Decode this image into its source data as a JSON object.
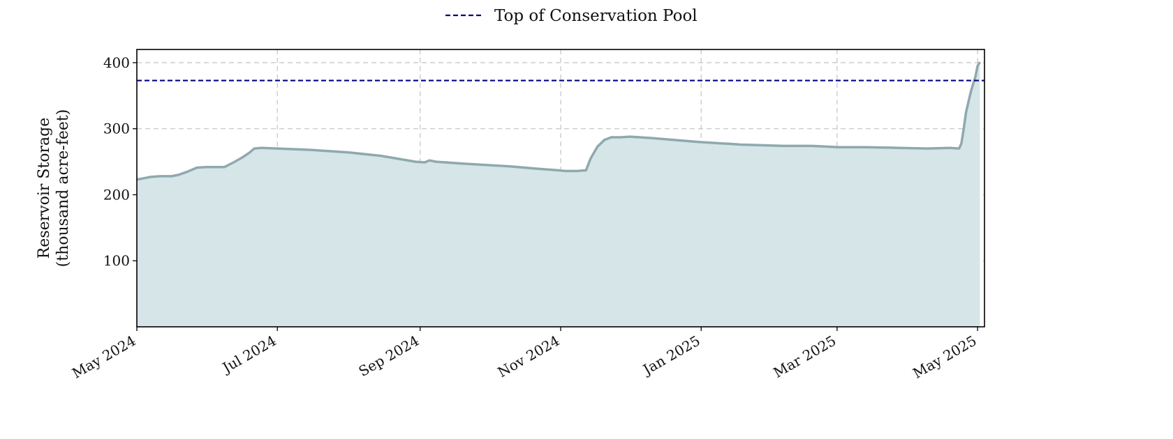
{
  "chart_data": {
    "type": "area",
    "ylabel": [
      "Reservoir Storage",
      "(thousand acre-feet)"
    ],
    "xlabel": "",
    "xlim": [
      "2024-05-01",
      "2025-05-04"
    ],
    "ylim": [
      0,
      420
    ],
    "yticks": [
      100,
      200,
      300,
      400
    ],
    "xticks": [
      {
        "date": "2024-05-01",
        "label": "May 2024"
      },
      {
        "date": "2024-07-01",
        "label": "Jul 2024"
      },
      {
        "date": "2024-09-01",
        "label": "Sep 2024"
      },
      {
        "date": "2024-11-01",
        "label": "Nov 2024"
      },
      {
        "date": "2025-01-01",
        "label": "Jan 2025"
      },
      {
        "date": "2025-03-01",
        "label": "Mar 2025"
      },
      {
        "date": "2025-05-01",
        "label": "May 2025"
      }
    ],
    "grid": true,
    "legend_position": "top-center",
    "series": [
      {
        "name": "",
        "color": "#8fa9ae",
        "fill": "#d6e5e7",
        "points": [
          [
            "2024-05-01",
            223
          ],
          [
            "2024-05-04",
            225
          ],
          [
            "2024-05-07",
            227
          ],
          [
            "2024-05-11",
            228
          ],
          [
            "2024-05-16",
            228
          ],
          [
            "2024-05-19",
            230
          ],
          [
            "2024-05-23",
            235
          ],
          [
            "2024-05-27",
            241
          ],
          [
            "2024-05-31",
            242
          ],
          [
            "2024-06-08",
            242
          ],
          [
            "2024-06-12",
            249
          ],
          [
            "2024-06-16",
            257
          ],
          [
            "2024-06-19",
            264
          ],
          [
            "2024-06-21",
            270
          ],
          [
            "2024-06-24",
            271
          ],
          [
            "2024-07-01",
            270
          ],
          [
            "2024-07-15",
            268
          ],
          [
            "2024-08-01",
            264
          ],
          [
            "2024-08-15",
            259
          ],
          [
            "2024-08-30",
            250
          ],
          [
            "2024-09-03",
            249
          ],
          [
            "2024-09-05",
            252
          ],
          [
            "2024-09-08",
            250
          ],
          [
            "2024-09-20",
            247
          ],
          [
            "2024-10-10",
            243
          ],
          [
            "2024-10-20",
            240
          ],
          [
            "2024-10-31",
            237
          ],
          [
            "2024-11-03",
            236
          ],
          [
            "2024-11-08",
            236
          ],
          [
            "2024-11-12",
            237
          ],
          [
            "2024-11-14",
            255
          ],
          [
            "2024-11-17",
            273
          ],
          [
            "2024-11-20",
            283
          ],
          [
            "2024-11-23",
            287
          ],
          [
            "2024-11-27",
            287
          ],
          [
            "2024-12-01",
            288
          ],
          [
            "2024-12-10",
            286
          ],
          [
            "2024-12-20",
            283
          ],
          [
            "2024-12-31",
            280
          ],
          [
            "2025-01-09",
            278
          ],
          [
            "2025-01-14",
            277
          ],
          [
            "2025-01-18",
            276
          ],
          [
            "2025-01-27",
            275
          ],
          [
            "2025-02-06",
            274
          ],
          [
            "2025-02-18",
            274
          ],
          [
            "2025-03-02",
            272
          ],
          [
            "2025-03-14",
            272
          ],
          [
            "2025-03-28",
            271
          ],
          [
            "2025-04-09",
            270
          ],
          [
            "2025-04-19",
            271
          ],
          [
            "2025-04-23",
            270
          ],
          [
            "2025-04-24",
            278
          ],
          [
            "2025-04-25",
            300
          ],
          [
            "2025-04-26",
            325
          ],
          [
            "2025-04-27",
            340
          ],
          [
            "2025-04-28",
            355
          ],
          [
            "2025-04-29",
            367
          ],
          [
            "2025-04-30",
            378
          ],
          [
            "2025-05-01",
            395
          ],
          [
            "2025-05-02",
            401
          ]
        ]
      }
    ],
    "reference_lines": [
      {
        "name": "Top of Conservation Pool",
        "y": 373,
        "color": "#000080",
        "style": "dashed"
      }
    ]
  }
}
